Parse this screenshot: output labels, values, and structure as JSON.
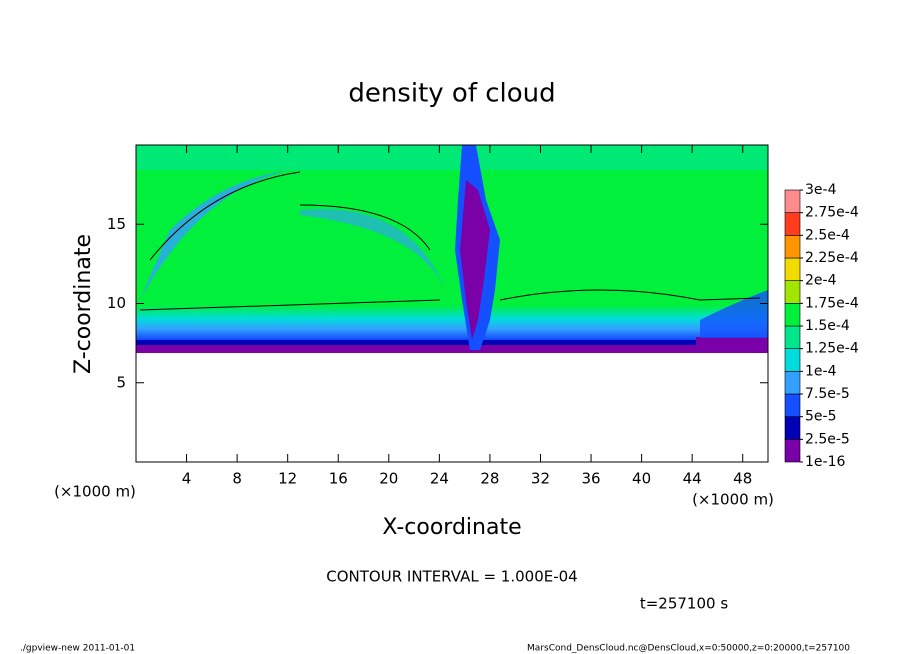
{
  "chart_data": {
    "type": "contour",
    "title": "density of cloud",
    "x_label": "X-coordinate",
    "y_label": "Z-coordinate",
    "x_unit": "(×1000 m)",
    "xlim": [
      0,
      50
    ],
    "xticks": [
      4,
      8,
      12,
      16,
      20,
      24,
      28,
      32,
      36,
      40,
      44,
      48
    ],
    "ylim": [
      0,
      20
    ],
    "yticks": [
      5,
      10,
      15
    ],
    "colorbar_ticks": [
      {
        "value": 1e-16,
        "label": "1e-16"
      },
      {
        "value": 2.5e-05,
        "label": "2.5e-5"
      },
      {
        "value": 5e-05,
        "label": "5e-5"
      },
      {
        "value": 7.5e-05,
        "label": "7.5e-5"
      },
      {
        "value": 0.0001,
        "label": "1e-4"
      },
      {
        "value": 0.000125,
        "label": "1.25e-4"
      },
      {
        "value": 0.00015,
        "label": "1.5e-4"
      },
      {
        "value": 0.000175,
        "label": "1.75e-4"
      },
      {
        "value": 0.0002,
        "label": "2e-4"
      },
      {
        "value": 0.000225,
        "label": "2.25e-4"
      },
      {
        "value": 0.00025,
        "label": "2.5e-4"
      },
      {
        "value": 0.000275,
        "label": "2.75e-4"
      },
      {
        "value": 0.0003,
        "label": "3e-4"
      }
    ],
    "colorbar_colors": [
      "#7a00a8",
      "#0000b4",
      "#1450ff",
      "#32a0ff",
      "#00dcdc",
      "#00e68c",
      "#00f03c",
      "#a0e600",
      "#f0dc00",
      "#ff9600",
      "#ff3c1e",
      "#ff8c8c"
    ],
    "annotations": [
      "CONTOUR INTERVAL = 1.000E-04",
      "t=257100 s"
    ],
    "footer_left": "./gpview-new  2011-01-01",
    "footer_right": "MarsCond_DensCloud.nc@DensCloud,x=0:50000,z=0:20000,t=257100"
  }
}
